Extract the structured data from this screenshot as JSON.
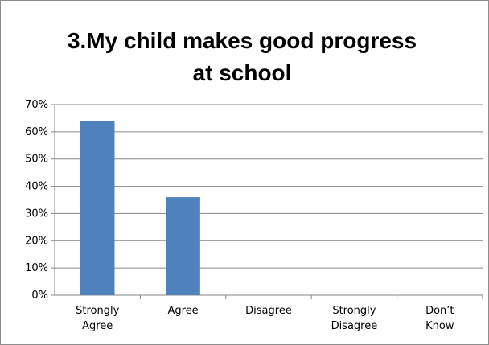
{
  "chart_data": {
    "type": "bar",
    "title_lines": [
      "3.My child makes good progress",
      "at school"
    ],
    "categories": [
      [
        "Strongly",
        "Agree"
      ],
      [
        "Agree"
      ],
      [
        "Disagree"
      ],
      [
        "Strongly",
        "Disagree"
      ],
      [
        "Don’t",
        "Know"
      ]
    ],
    "values": [
      0.64,
      0.36,
      0,
      0,
      0
    ],
    "ylim": [
      0,
      0.7
    ],
    "yticks": [
      "0%",
      "10%",
      "20%",
      "30%",
      "40%",
      "50%",
      "60%",
      "70%"
    ],
    "grid": true,
    "bar_color": "#4f81bd",
    "grid_color": "#868686",
    "axis_color": "#868686"
  }
}
